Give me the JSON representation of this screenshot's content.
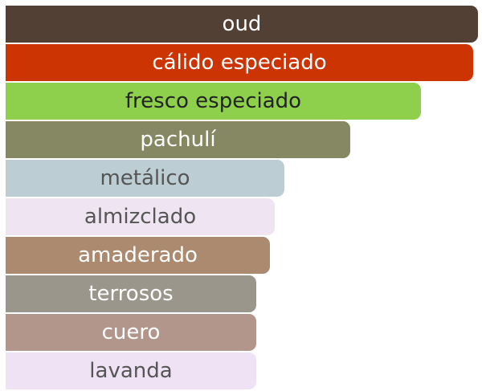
{
  "chart_data": {
    "type": "bar",
    "orientation": "horizontal",
    "categories": [
      "oud",
      "cálido especiado",
      "fresco especiado",
      "pachulí",
      "metálico",
      "almizclado",
      "amaderado",
      "terrosos",
      "cuero",
      "lavanda"
    ],
    "values": [
      100,
      99,
      88,
      73,
      59,
      57,
      56,
      53,
      53,
      53
    ],
    "value_max": 100,
    "colors": [
      "#534034",
      "#cc3403",
      "#8ed04c",
      "#858863",
      "#bdcdd4",
      "#efe5f2",
      "#ab8a6f",
      "#9a968c",
      "#b2968b",
      "#efe2f4"
    ],
    "text_colors": [
      "#ffffff",
      "#ffffff",
      "#222222",
      "#ffffff",
      "#555555",
      "#555555",
      "#ffffff",
      "#ffffff",
      "#ffffff",
      "#555555"
    ]
  }
}
